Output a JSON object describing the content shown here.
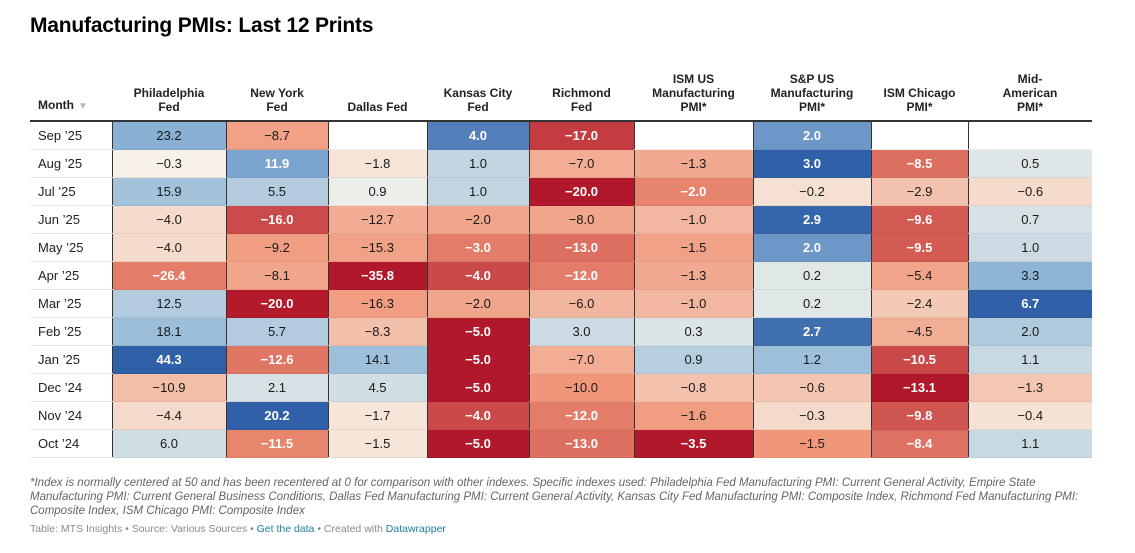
{
  "title": "Manufacturing PMIs: Last 12 Prints",
  "chart_data": {
    "type": "heatmap",
    "title": "Manufacturing PMIs: Last 12 Prints",
    "row_header": "Month",
    "row_header_sort_icon": "sort-down-triangle-icon",
    "columns": [
      "Philadelphia Fed",
      "New York Fed",
      "Dallas Fed",
      "Kansas City Fed",
      "Richmond Fed",
      "ISM US Manufacturing PMI*",
      "S&P US Manufacturing PMI*",
      "ISM Chicago PMI*",
      "Mid-American PMI*"
    ],
    "column_header_lines": [
      [
        "Philadelphia",
        "Fed"
      ],
      [
        "New York",
        "Fed"
      ],
      [
        "Dallas Fed"
      ],
      [
        "Kansas City",
        "Fed"
      ],
      [
        "Richmond",
        "Fed"
      ],
      [
        "ISM US",
        "Manufacturing",
        "PMI*"
      ],
      [
        "S&P US",
        "Manufacturing",
        "PMI*"
      ],
      [
        "ISM Chicago",
        "PMI*"
      ],
      [
        "Mid-",
        "American",
        "PMI*"
      ]
    ],
    "rows": [
      "Sep ’25",
      "Aug ’25",
      "Jul ’25",
      "Jun ’25",
      "May ’25",
      "Apr ’25",
      "Mar ’25",
      "Feb ’25",
      "Jan ’25",
      "Dec ’24",
      "Nov ’24",
      "Oct ’24"
    ],
    "values": [
      [
        23.2,
        -8.7,
        null,
        4.0,
        -17.0,
        null,
        2.0,
        null,
        null
      ],
      [
        -0.3,
        11.9,
        -1.8,
        1.0,
        -7.0,
        -1.3,
        3.0,
        -8.5,
        0.5
      ],
      [
        15.9,
        5.5,
        0.9,
        1.0,
        -20.0,
        -2.0,
        -0.2,
        -2.9,
        -0.6
      ],
      [
        -4.0,
        -16.0,
        -12.7,
        -2.0,
        -8.0,
        -1.0,
        2.9,
        -9.6,
        0.7
      ],
      [
        -4.0,
        -9.2,
        -15.3,
        -3.0,
        -13.0,
        -1.5,
        2.0,
        -9.5,
        1.0
      ],
      [
        -26.4,
        -8.1,
        -35.8,
        -4.0,
        -12.0,
        -1.3,
        0.2,
        -5.4,
        3.3
      ],
      [
        12.5,
        -20.0,
        -16.3,
        -2.0,
        -6.0,
        -1.0,
        0.2,
        -2.4,
        6.7
      ],
      [
        18.1,
        5.7,
        -8.3,
        -5.0,
        3.0,
        0.3,
        2.7,
        -4.5,
        2.0
      ],
      [
        44.3,
        -12.6,
        14.1,
        -5.0,
        -7.0,
        0.9,
        1.2,
        -10.5,
        1.1
      ],
      [
        -10.9,
        2.1,
        4.5,
        -5.0,
        -10.0,
        -0.8,
        -0.6,
        -13.1,
        -1.3
      ],
      [
        -4.4,
        20.2,
        -1.7,
        -4.0,
        -12.0,
        -1.6,
        -0.3,
        -9.8,
        -0.4
      ],
      [
        6.0,
        -11.5,
        -1.5,
        -5.0,
        -13.0,
        -3.5,
        -1.5,
        -8.4,
        1.1
      ]
    ],
    "color_scale": {
      "type": "diverging",
      "per_column": true,
      "center": 0,
      "negative_color": "#b2182b",
      "neutral_color": "#f7f5ec",
      "positive_color": "#2f60a8",
      "missing_color": "#ffffff"
    },
    "number_format": "0.0"
  },
  "notes": "*Index is normally centered at 50 and has been recentered at 0 for comparison with other indexes. Specific indexes used: Philadelphia Fed Manufacturing PMI: Current General Activity, Empire State Manufacturing PMI: Current General Business Conditions, Dallas Fed Manufacturing PMI: Current General Activity, Kansas City Fed Manufacturing PMI: Composite Index, Richmond Fed Manufacturing PMI: Composite Index, ISM Chicago PMI: Composite Index",
  "footer": {
    "table_label": "Table: MTS Insights",
    "separator": " • ",
    "source": "Source: Various Sources",
    "get_data_link": "Get the data",
    "created_with": "Created with ",
    "datawrapper_link": "Datawrapper"
  }
}
